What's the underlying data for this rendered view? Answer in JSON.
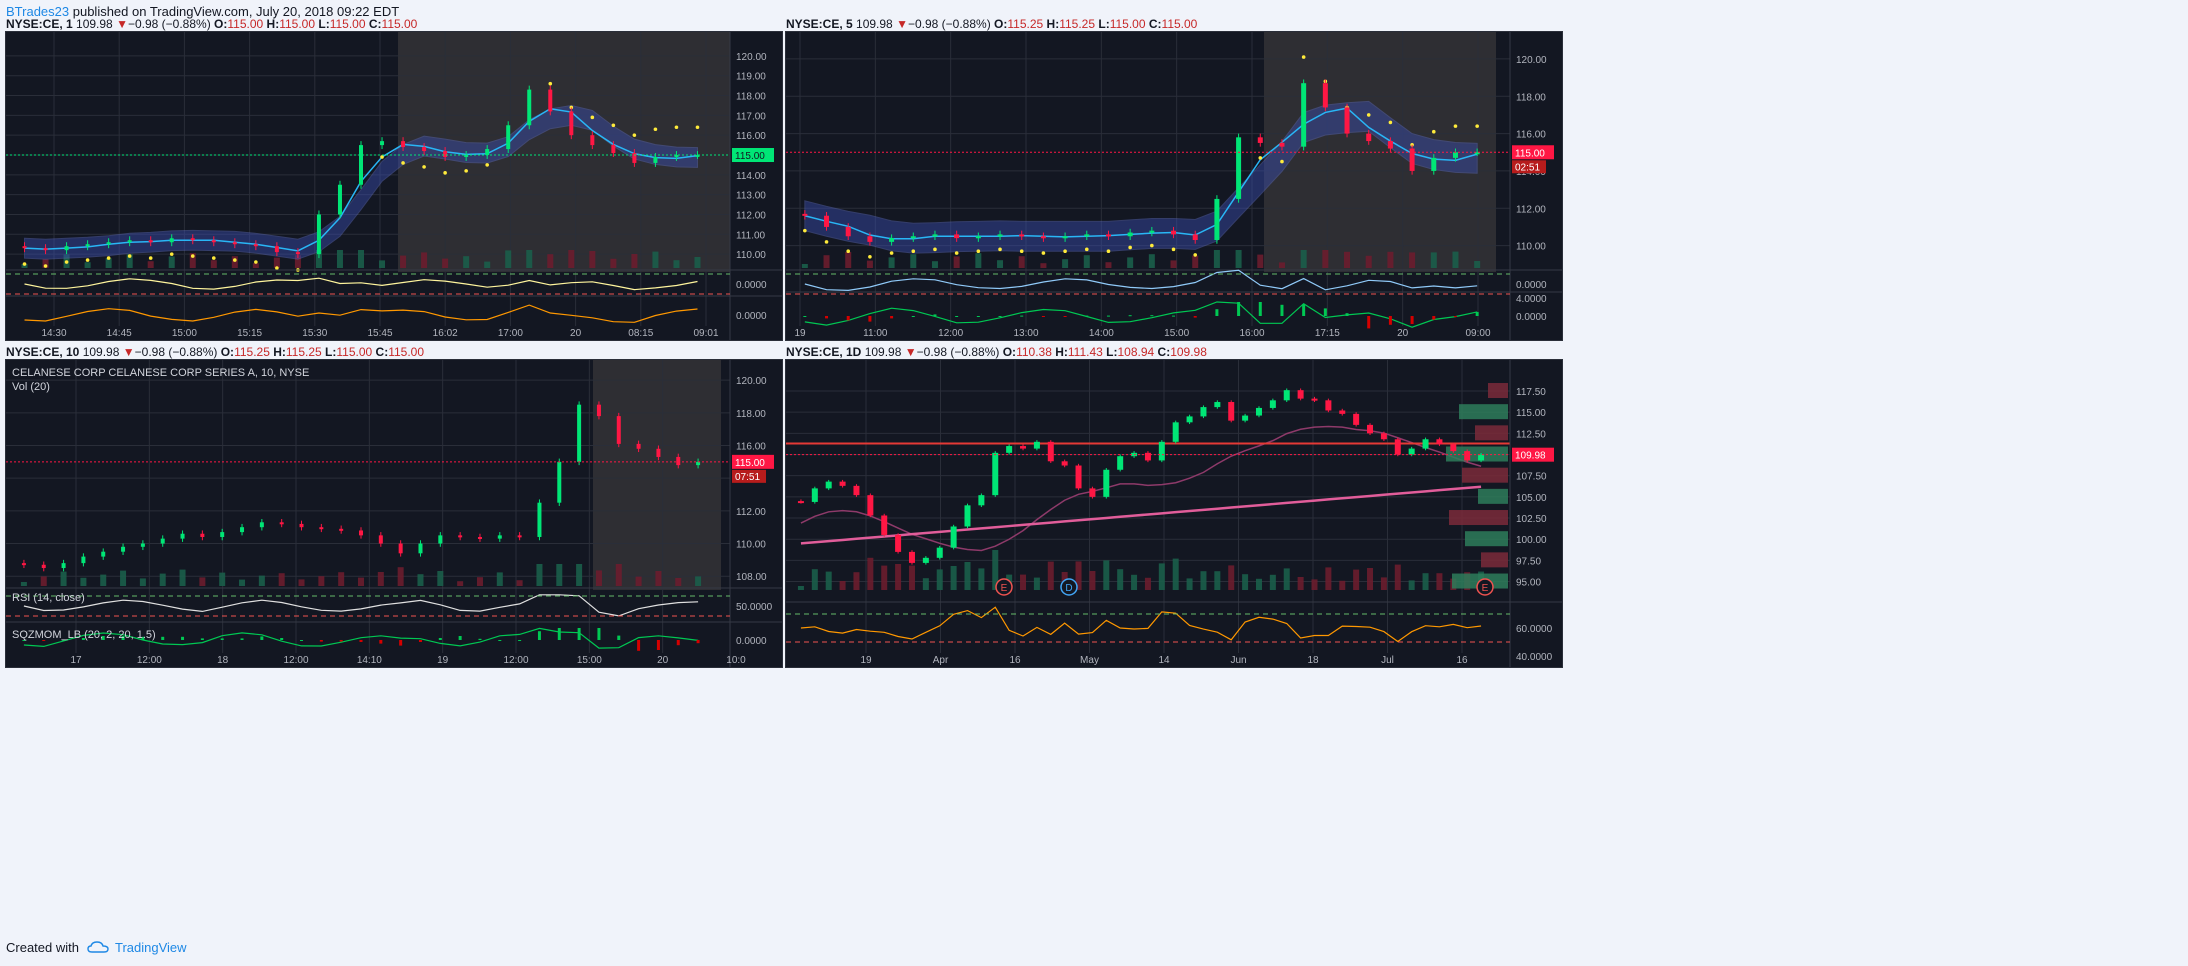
{
  "header": {
    "author": "BTrades23",
    "published": "published on TradingView.com, July 20, 2018 09:22 EDT"
  },
  "footer": {
    "created_with": "Created with",
    "brand": "TradingView"
  },
  "colors": {
    "up": "#00e676",
    "down": "#ff1744",
    "pane_bg": "#131722",
    "axis_text": "#b2b5be",
    "price_tag": "#ff1744",
    "ribbon": "#3a4db1",
    "vwap": "#29b6f6",
    "psar": "#ffeb3b",
    "session_shade": "#2e2e33"
  },
  "panels": [
    {
      "id": "p1",
      "legend": {
        "symbol": "NYSE:CE, 1",
        "last": "109.98",
        "arrow": "▼",
        "change": "−0.98 (−0.88%)",
        "o_label": "O:",
        "o": "115.00",
        "h_label": "H:",
        "h": "115.00",
        "l_label": "L:",
        "l": "115.00",
        "c_label": "C:",
        "c": "115.00"
      },
      "price_axis": [
        "120.00",
        "119.00",
        "118.00",
        "117.00",
        "116.00",
        "115.00",
        "114.00",
        "113.00",
        "112.00",
        "111.00",
        "110.00"
      ],
      "price_tag": "115.00",
      "rsi_axis": [
        "0.0000"
      ],
      "osc_axis": [
        "0.0000"
      ],
      "time_axis": [
        "14:30",
        "14:45",
        "15:00",
        "15:15",
        "15:30",
        "15:45",
        "16:02",
        "17:00",
        "20",
        "08:15",
        "09:01"
      ]
    },
    {
      "id": "p2",
      "legend": {
        "symbol": "NYSE:CE, 5",
        "last": "109.98",
        "arrow": "▼",
        "change": "−0.98 (−0.88%)",
        "o_label": "O:",
        "o": "115.25",
        "h_label": "H:",
        "h": "115.25",
        "l_label": "L:",
        "l": "115.00",
        "c_label": "C:",
        "c": "115.00"
      },
      "price_axis": [
        "120.00",
        "118.00",
        "116.00",
        "114.00",
        "112.00",
        "110.00"
      ],
      "price_tag": "115.00",
      "countdown": "02:51",
      "rsi_axis": [
        "0.0000"
      ],
      "osc_axis": [
        "4.0000",
        "0.0000"
      ],
      "time_axis": [
        "19",
        "11:00",
        "12:00",
        "13:00",
        "14:00",
        "15:00",
        "16:00",
        "17:15",
        "20",
        "09:00"
      ]
    },
    {
      "id": "p3",
      "legend": {
        "symbol": "NYSE:CE, 10",
        "last": "109.98",
        "arrow": "▼",
        "change": "−0.98 (−0.88%)",
        "o_label": "O:",
        "o": "115.25",
        "h_label": "H:",
        "h": "115.25",
        "l_label": "L:",
        "l": "115.00",
        "c_label": "C:",
        "c": "115.00"
      },
      "title_line": "CELANESE CORP CELANESE CORP SERIES A, 10, NYSE",
      "vol_label": "Vol (20)",
      "rsi_label": "RSI (14, close)",
      "sqz_label": "SQZMOM_LB (20, 2, 20, 1.5)",
      "price_axis": [
        "120.00",
        "118.00",
        "116.00",
        "114.00",
        "112.00",
        "110.00",
        "108.00"
      ],
      "price_tag": "115.00",
      "countdown": "07:51",
      "rsi_axis": [
        "50.0000"
      ],
      "osc_axis": [
        "0.0000"
      ],
      "time_axis": [
        "17",
        "12:00",
        "18",
        "12:00",
        "14:10",
        "19",
        "12:00",
        "15:00",
        "20",
        "10:0"
      ]
    },
    {
      "id": "p4",
      "legend": {
        "symbol": "NYSE:CE, 1D",
        "last": "109.98",
        "arrow": "▼",
        "change": "−0.98 (−0.88%)",
        "o_label": "O:",
        "o": "110.38",
        "h_label": "H:",
        "h": "111.43",
        "l_label": "L:",
        "l": "108.94",
        "c_label": "C:",
        "c": "109.98"
      },
      "price_axis": [
        "117.50",
        "115.00",
        "112.50",
        "110.00",
        "107.50",
        "105.00",
        "102.50",
        "100.00",
        "97.50",
        "95.00"
      ],
      "price_tag": "109.98",
      "rsi_axis": [
        "60.0000",
        "40.0000"
      ],
      "event_markers": [
        "E",
        "D",
        "E"
      ],
      "time_axis": [
        "19",
        "Apr",
        "16",
        "May",
        "14",
        "Jun",
        "18",
        "Jul",
        "16"
      ]
    }
  ],
  "chart_data": [
    {
      "type": "candlestick",
      "symbol": "NYSE:CE",
      "interval": "1",
      "ylim": [
        109.3,
        120.6
      ],
      "last_price": 115.0,
      "series": [
        {
          "name": "Price",
          "values": [
            110.3,
            110.2,
            110.4,
            110.5,
            110.6,
            110.7,
            110.6,
            110.8,
            110.7,
            110.6,
            110.5,
            110.4,
            110.1,
            110.0,
            112.0,
            113.5,
            115.5,
            115.7,
            115.4,
            115.2,
            114.9,
            115.0,
            115.3,
            116.5,
            118.3,
            117.2,
            116.0,
            115.5,
            115.1,
            114.6,
            114.9,
            115.0,
            115.0
          ]
        }
      ]
    },
    {
      "type": "candlestick",
      "symbol": "NYSE:CE",
      "interval": "5",
      "ylim": [
        108.8,
        120.8
      ],
      "last_price": 115.0,
      "series": [
        {
          "name": "Price",
          "values": [
            111.6,
            111.0,
            110.5,
            110.2,
            110.4,
            110.5,
            110.6,
            110.4,
            110.5,
            110.6,
            110.5,
            110.4,
            110.5,
            110.6,
            110.5,
            110.7,
            110.8,
            110.6,
            110.3,
            112.5,
            115.8,
            115.5,
            115.3,
            118.7,
            117.4,
            116.0,
            115.6,
            115.2,
            114.0,
            114.7,
            115.0,
            115.0
          ]
        }
      ]
    },
    {
      "type": "candlestick",
      "symbol": "NYSE:CE",
      "interval": "10",
      "ylim": [
        107.4,
        120.5
      ],
      "last_price": 115.0,
      "series": [
        {
          "name": "Price",
          "values": [
            108.7,
            108.5,
            108.8,
            109.2,
            109.5,
            109.8,
            110.0,
            110.3,
            110.6,
            110.4,
            110.7,
            111.0,
            111.3,
            111.2,
            111.0,
            110.9,
            110.8,
            110.5,
            110.0,
            109.4,
            110.0,
            110.5,
            110.4,
            110.3,
            110.5,
            110.4,
            112.5,
            115.0,
            118.5,
            117.8,
            116.1,
            115.8,
            115.3,
            114.8,
            115.0
          ]
        }
      ]
    },
    {
      "type": "candlestick",
      "symbol": "NYSE:CE",
      "interval": "1D",
      "ylim": [
        94.0,
        118.8
      ],
      "last_price": 109.98,
      "series": [
        {
          "name": "Price",
          "values": [
            104.4,
            106.0,
            106.8,
            106.3,
            105.2,
            102.8,
            100.5,
            98.5,
            97.2,
            97.8,
            99.0,
            101.5,
            104.0,
            105.2,
            110.2,
            111.0,
            110.7,
            111.5,
            109.2,
            108.7,
            106.0,
            105.0,
            108.2,
            109.8,
            110.2,
            109.3,
            111.5,
            113.8,
            114.5,
            115.6,
            116.2,
            114.0,
            114.6,
            115.5,
            116.4,
            117.6,
            116.6,
            116.4,
            115.2,
            114.8,
            113.5,
            112.5,
            111.8,
            110.0,
            110.7,
            111.8,
            111.2,
            110.4,
            109.3,
            109.98
          ]
        }
      ]
    }
  ]
}
